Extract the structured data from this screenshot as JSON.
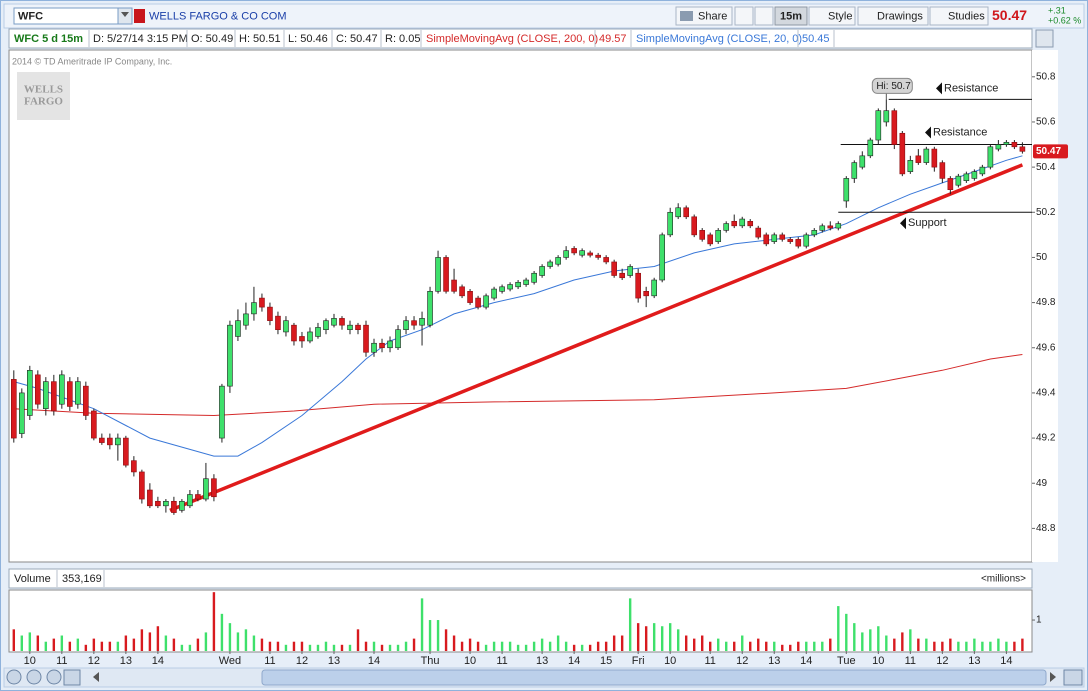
{
  "toolbar": {
    "symbol": "WFC",
    "company": "WELLS FARGO & CO COM",
    "share": "Share",
    "interval": "15m",
    "style": "Style",
    "drawings": "Drawings",
    "studies": "Studies",
    "last": "50.47",
    "change": "+.31",
    "change_pct": "+0.62 %"
  },
  "info_bar": {
    "label": "WFC 5 d 15m",
    "date": "D: 5/27/14 3:15 PM",
    "open": "O: 50.49",
    "high": "H: 50.51",
    "low": "L: 50.46",
    "close": "C: 50.47",
    "range": "R: 0.05"
  },
  "chart_data": {
    "type": "candlestick",
    "copyright": "2014 © TD Ameritrade IP Company, Inc.",
    "logo": [
      "WELLS",
      "FARGO"
    ],
    "colors": {
      "up": "#3ee06b",
      "down": "#d81a1f"
    },
    "ylim": [
      48.66,
      50.87
    ],
    "yticks": [
      48.8,
      49,
      49.2,
      49.4,
      49.6,
      49.8,
      50,
      50.2,
      50.4,
      50.6,
      50.8
    ],
    "xlim": [
      -0.6,
      127.2
    ],
    "xticks": [
      {
        "value": 2,
        "label": "10"
      },
      {
        "value": 6,
        "label": "11"
      },
      {
        "value": 10,
        "label": "12"
      },
      {
        "value": 14,
        "label": "13"
      },
      {
        "value": 18,
        "label": "14"
      },
      {
        "value": 27,
        "label": "Wed"
      },
      {
        "value": 32,
        "label": "11"
      },
      {
        "value": 36,
        "label": "12"
      },
      {
        "value": 40,
        "label": "13"
      },
      {
        "value": 45,
        "label": "14"
      },
      {
        "value": 52,
        "label": "Thu"
      },
      {
        "value": 57,
        "label": "10"
      },
      {
        "value": 61,
        "label": "11"
      },
      {
        "value": 66,
        "label": "13"
      },
      {
        "value": 70,
        "label": "14"
      },
      {
        "value": 74,
        "label": "15"
      },
      {
        "value": 78,
        "label": "Fri"
      },
      {
        "value": 82,
        "label": "10"
      },
      {
        "value": 87,
        "label": "11"
      },
      {
        "value": 91,
        "label": "12"
      },
      {
        "value": 95,
        "label": "13"
      },
      {
        "value": 99,
        "label": "14"
      },
      {
        "value": 104,
        "label": "Tue"
      },
      {
        "value": 108,
        "label": "10"
      },
      {
        "value": 112,
        "label": "11"
      },
      {
        "value": 116,
        "label": "12"
      },
      {
        "value": 120,
        "label": "13"
      },
      {
        "value": 124,
        "label": "14"
      }
    ],
    "ohlc": [
      [
        49.46,
        49.5,
        49.18,
        49.2
      ],
      [
        49.22,
        49.42,
        49.2,
        49.4
      ],
      [
        49.3,
        49.52,
        49.28,
        49.5
      ],
      [
        49.48,
        49.5,
        49.33,
        49.35
      ],
      [
        49.33,
        49.47,
        49.3,
        49.45
      ],
      [
        49.45,
        49.48,
        49.3,
        49.32
      ],
      [
        49.35,
        49.5,
        49.33,
        49.48
      ],
      [
        49.45,
        49.47,
        49.32,
        49.34
      ],
      [
        49.35,
        49.47,
        49.33,
        49.45
      ],
      [
        49.43,
        49.45,
        49.28,
        49.3
      ],
      [
        49.32,
        49.33,
        49.19,
        49.2
      ],
      [
        49.2,
        49.22,
        49.17,
        49.18
      ],
      [
        49.2,
        49.22,
        49.15,
        49.17
      ],
      [
        49.17,
        49.22,
        49.1,
        49.2
      ],
      [
        49.2,
        49.21,
        49.07,
        49.08
      ],
      [
        49.1,
        49.12,
        49.03,
        49.05
      ],
      [
        49.05,
        49.06,
        48.91,
        48.93
      ],
      [
        48.97,
        49.0,
        48.89,
        48.9
      ],
      [
        48.92,
        48.94,
        48.89,
        48.9
      ],
      [
        48.9,
        48.93,
        48.87,
        48.92
      ],
      [
        48.92,
        48.94,
        48.86,
        48.87
      ],
      [
        48.88,
        48.93,
        48.87,
        48.92
      ],
      [
        48.9,
        48.97,
        48.89,
        48.95
      ],
      [
        48.95,
        48.97,
        48.92,
        48.93
      ],
      [
        48.93,
        49.09,
        48.92,
        49.02
      ],
      [
        49.02,
        49.04,
        48.92,
        48.94
      ],
      [
        49.2,
        49.44,
        49.18,
        49.43
      ],
      [
        49.43,
        49.72,
        49.4,
        49.7
      ],
      [
        49.65,
        49.77,
        49.63,
        49.72
      ],
      [
        49.7,
        49.8,
        49.68,
        49.75
      ],
      [
        49.75,
        49.87,
        49.72,
        49.8
      ],
      [
        49.82,
        49.84,
        49.76,
        49.78
      ],
      [
        49.78,
        49.8,
        49.7,
        49.72
      ],
      [
        49.74,
        49.76,
        49.66,
        49.68
      ],
      [
        49.67,
        49.74,
        49.65,
        49.72
      ],
      [
        49.7,
        49.71,
        49.61,
        49.63
      ],
      [
        49.65,
        49.67,
        49.6,
        49.63
      ],
      [
        49.63,
        49.69,
        49.62,
        49.67
      ],
      [
        49.65,
        49.71,
        49.64,
        49.69
      ],
      [
        49.68,
        49.73,
        49.66,
        49.72
      ],
      [
        49.7,
        49.75,
        49.69,
        49.73
      ],
      [
        49.73,
        49.74,
        49.68,
        49.7
      ],
      [
        49.68,
        49.72,
        49.66,
        49.7
      ],
      [
        49.7,
        49.71,
        49.66,
        49.68
      ],
      [
        49.7,
        49.72,
        49.56,
        49.58
      ],
      [
        49.58,
        49.64,
        49.56,
        49.62
      ],
      [
        49.62,
        49.64,
        49.58,
        49.6
      ],
      [
        49.6,
        49.65,
        49.58,
        49.63
      ],
      [
        49.6,
        49.7,
        49.59,
        49.68
      ],
      [
        49.68,
        49.74,
        49.66,
        49.72
      ],
      [
        49.72,
        49.74,
        49.68,
        49.7
      ],
      [
        49.7,
        49.76,
        49.61,
        49.73
      ],
      [
        49.7,
        49.87,
        49.69,
        49.85
      ],
      [
        49.85,
        50.03,
        49.84,
        50.0
      ],
      [
        50.0,
        50.01,
        49.84,
        49.85
      ],
      [
        49.9,
        49.95,
        49.84,
        49.85
      ],
      [
        49.87,
        49.88,
        49.82,
        49.83
      ],
      [
        49.85,
        49.86,
        49.79,
        49.8
      ],
      [
        49.82,
        49.83,
        49.77,
        49.78
      ],
      [
        49.78,
        49.84,
        49.77,
        49.83
      ],
      [
        49.82,
        49.87,
        49.81,
        49.86
      ],
      [
        49.85,
        49.88,
        49.84,
        49.87
      ],
      [
        49.86,
        49.89,
        49.85,
        49.88
      ],
      [
        49.87,
        49.9,
        49.86,
        49.89
      ],
      [
        49.88,
        49.91,
        49.87,
        49.9
      ],
      [
        49.89,
        49.94,
        49.88,
        49.93
      ],
      [
        49.92,
        49.97,
        49.91,
        49.96
      ],
      [
        49.96,
        49.99,
        49.95,
        49.98
      ],
      [
        49.97,
        50.01,
        49.96,
        50.0
      ],
      [
        50.0,
        50.05,
        49.99,
        50.03
      ],
      [
        50.04,
        50.05,
        50.01,
        50.02
      ],
      [
        50.01,
        50.04,
        50.0,
        50.03
      ],
      [
        50.02,
        50.03,
        50.0,
        50.01
      ],
      [
        50.01,
        50.02,
        49.99,
        50.0
      ],
      [
        50.0,
        50.01,
        49.97,
        49.98
      ],
      [
        49.98,
        49.99,
        49.91,
        49.92
      ],
      [
        49.93,
        49.95,
        49.9,
        49.91
      ],
      [
        49.92,
        49.97,
        49.91,
        49.96
      ],
      [
        49.93,
        49.95,
        49.8,
        49.82
      ],
      [
        49.85,
        49.87,
        49.78,
        49.83
      ],
      [
        49.83,
        49.91,
        49.82,
        49.9
      ],
      [
        49.9,
        50.11,
        49.89,
        50.1
      ],
      [
        50.1,
        50.22,
        50.09,
        50.2
      ],
      [
        50.18,
        50.24,
        50.17,
        50.22
      ],
      [
        50.22,
        50.23,
        50.17,
        50.18
      ],
      [
        50.18,
        50.19,
        50.09,
        50.1
      ],
      [
        50.12,
        50.13,
        50.07,
        50.08
      ],
      [
        50.1,
        50.11,
        50.05,
        50.06
      ],
      [
        50.07,
        50.13,
        50.06,
        50.12
      ],
      [
        50.12,
        50.16,
        50.11,
        50.15
      ],
      [
        50.16,
        50.19,
        50.13,
        50.14
      ],
      [
        50.14,
        50.18,
        50.13,
        50.17
      ],
      [
        50.16,
        50.17,
        50.13,
        50.14
      ],
      [
        50.13,
        50.14,
        50.08,
        50.09
      ],
      [
        50.1,
        50.11,
        50.05,
        50.06
      ],
      [
        50.07,
        50.11,
        50.06,
        50.1
      ],
      [
        50.1,
        50.11,
        50.07,
        50.08
      ],
      [
        50.08,
        50.09,
        50.06,
        50.07
      ],
      [
        50.08,
        50.09,
        50.04,
        50.05
      ],
      [
        50.05,
        50.11,
        50.04,
        50.1
      ],
      [
        50.1,
        50.13,
        50.09,
        50.12
      ],
      [
        50.12,
        50.15,
        50.11,
        50.14
      ],
      [
        50.14,
        50.16,
        50.12,
        50.13
      ],
      [
        50.13,
        50.16,
        50.12,
        50.15
      ],
      [
        50.25,
        50.36,
        50.22,
        50.35
      ],
      [
        50.35,
        50.43,
        50.33,
        50.42
      ],
      [
        50.4,
        50.47,
        50.39,
        50.45
      ],
      [
        50.45,
        50.53,
        50.44,
        50.52
      ],
      [
        50.52,
        50.66,
        50.5,
        50.65
      ],
      [
        50.6,
        50.7,
        50.58,
        50.65
      ],
      [
        50.65,
        50.66,
        50.48,
        50.5
      ],
      [
        50.55,
        50.56,
        50.36,
        50.37
      ],
      [
        50.38,
        50.45,
        50.37,
        50.43
      ],
      [
        50.45,
        50.48,
        50.41,
        50.42
      ],
      [
        50.42,
        50.49,
        50.41,
        50.48
      ],
      [
        50.48,
        50.49,
        50.38,
        50.4
      ],
      [
        50.42,
        50.43,
        50.33,
        50.35
      ],
      [
        50.35,
        50.36,
        50.28,
        50.3
      ],
      [
        50.32,
        50.37,
        50.31,
        50.36
      ],
      [
        50.34,
        50.38,
        50.33,
        50.37
      ],
      [
        50.35,
        50.39,
        50.34,
        50.38
      ],
      [
        50.37,
        50.41,
        50.36,
        50.4
      ],
      [
        50.4,
        50.5,
        50.39,
        50.49
      ],
      [
        50.48,
        50.52,
        50.47,
        50.5
      ],
      [
        50.5,
        50.52,
        50.49,
        50.51
      ],
      [
        50.51,
        50.52,
        50.48,
        50.49
      ],
      [
        50.49,
        50.51,
        50.46,
        50.47
      ]
    ],
    "studies": [
      {
        "name": "SimpleMovingAvg (CLOSE, 200, 0)",
        "color": "#d42a2a",
        "x": [
          0,
          10,
          25,
          35,
          45,
          60,
          80,
          95,
          104,
          110,
          116,
          122,
          126
        ],
        "values": [
          49.33,
          49.31,
          49.3,
          49.32,
          49.35,
          49.36,
          49.37,
          49.4,
          49.42,
          49.46,
          49.5,
          49.55,
          49.57
        ]
      },
      {
        "name": "SimpleMovingAvg (CLOSE, 20, 0)",
        "color": "#3a78d8",
        "x": [
          0,
          3,
          10,
          17,
          22,
          25,
          28,
          31,
          36,
          41,
          44,
          47,
          51,
          55,
          60,
          65,
          70,
          75,
          80,
          85,
          90,
          95,
          100,
          104,
          108,
          112,
          116,
          120,
          124,
          126
        ],
        "values": [
          49.45,
          49.42,
          49.33,
          49.2,
          49.15,
          49.12,
          49.12,
          49.18,
          49.3,
          49.45,
          49.55,
          49.63,
          49.68,
          49.75,
          49.8,
          49.84,
          49.9,
          49.94,
          49.96,
          50.02,
          50.06,
          50.08,
          50.1,
          50.15,
          50.22,
          50.28,
          50.33,
          50.38,
          50.43,
          50.45
        ]
      }
    ],
    "trendline": {
      "color": "#e01b1b",
      "x": [
        19.5,
        126
      ],
      "values": [
        48.88,
        50.41
      ]
    },
    "levels": [
      {
        "label": "Resistance",
        "value": 50.7,
        "x_start": 109.3
      },
      {
        "label": "Resistance",
        "value": 50.5,
        "x_start": 103.3
      },
      {
        "label": "Support",
        "value": 50.2,
        "x_start": 103
      }
    ],
    "high_marker": {
      "label": "Hi:",
      "value": 50.7,
      "x": 109
    },
    "last_price": 50.47,
    "volume": {
      "label": "Volume",
      "last": "353,169",
      "unit_label": "<millions>",
      "ylim": [
        0,
        1.97
      ],
      "yticks": [
        1
      ],
      "values": [
        0.7,
        0.5,
        0.6,
        0.5,
        0.3,
        0.4,
        0.5,
        0.3,
        0.4,
        0.2,
        0.4,
        0.3,
        0.3,
        0.3,
        0.5,
        0.4,
        0.7,
        0.6,
        0.8,
        0.5,
        0.4,
        0.2,
        0.2,
        0.4,
        0.6,
        1.9,
        1.2,
        0.9,
        0.6,
        0.7,
        0.5,
        0.4,
        0.3,
        0.3,
        0.2,
        0.3,
        0.3,
        0.2,
        0.2,
        0.3,
        0.2,
        0.2,
        0.2,
        0.7,
        0.3,
        0.3,
        0.2,
        0.2,
        0.2,
        0.3,
        0.4,
        1.7,
        1.0,
        1.0,
        0.7,
        0.5,
        0.3,
        0.4,
        0.3,
        0.2,
        0.3,
        0.3,
        0.3,
        0.2,
        0.2,
        0.3,
        0.4,
        0.3,
        0.5,
        0.3,
        0.2,
        0.2,
        0.2,
        0.3,
        0.3,
        0.5,
        0.5,
        1.7,
        0.9,
        0.8,
        0.9,
        0.8,
        0.9,
        0.7,
        0.5,
        0.4,
        0.5,
        0.3,
        0.4,
        0.3,
        0.3,
        0.5,
        0.3,
        0.4,
        0.3,
        0.3,
        0.2,
        0.2,
        0.3,
        0.3,
        0.3,
        0.3,
        0.4,
        1.45,
        1.2,
        0.9,
        0.6,
        0.7,
        0.8,
        0.5,
        0.4,
        0.6,
        0.7,
        0.4,
        0.4,
        0.3,
        0.3,
        0.4,
        0.3,
        0.3,
        0.4,
        0.3,
        0.3,
        0.4,
        0.3,
        0.3,
        0.4
      ]
    }
  }
}
